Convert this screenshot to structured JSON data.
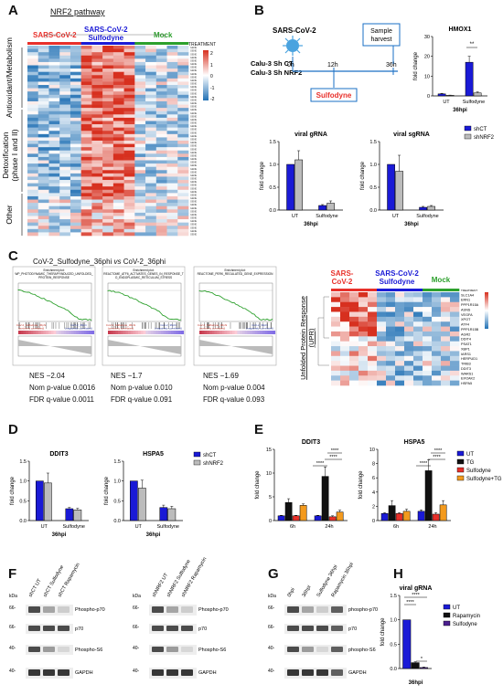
{
  "panels": {
    "A": "A",
    "B": "B",
    "C": "C",
    "D": "D",
    "E": "E",
    "F": "F",
    "G": "G",
    "H": "H"
  },
  "colors": {
    "red": "#e8302a",
    "blue": "#1a1ad6",
    "green": "#2ca02c",
    "gray": "#bcbcbc",
    "black": "#111111",
    "orange": "#f39a1e",
    "purple": "#4b1f8f"
  },
  "panelA": {
    "title": "NRF2 pathway",
    "groups": [
      "SARS-CoV-2",
      "SARS-CoV-2\nSulfodyne",
      "Mock"
    ],
    "treatment_label": "TREATMENT",
    "row_groups": [
      "Antioxidant/Metabolism",
      "Detoxification\n(phase I and II)",
      "Other"
    ],
    "scale": [
      "2",
      "1",
      "0",
      "-1",
      "-2"
    ]
  },
  "panelB": {
    "virus": "SARS-CoV-2",
    "cells": [
      "Calu-3 Sh CT",
      "Calu-3 Sh NRF2"
    ],
    "times": [
      "0h",
      "12h",
      "36h"
    ],
    "sample_harvest": "Sample\nharvest",
    "sulfodyne": "Sulfodyne",
    "hmox1": {
      "title": "HMOX1",
      "ylabel": "fold change",
      "yticks": [
        "0",
        "10",
        "20",
        "30"
      ],
      "categories": [
        "UT",
        "Sulfodyne"
      ],
      "xlabel": "36hpi",
      "sig": "**"
    },
    "gRNA": {
      "title": "viral gRNA",
      "ylabel": "fold change",
      "yticks": [
        "0.0",
        "0.5",
        "1.0",
        "1.5"
      ],
      "categories": [
        "UT",
        "Sulfodyne"
      ],
      "xlabel": "36hpi"
    },
    "sgRNA": {
      "title": "viral sgRNA",
      "ylabel": "fold change",
      "yticks": [
        "0.0",
        "0.5",
        "1.0",
        "1.5"
      ],
      "categories": [
        "UT",
        "Sulfodyne"
      ],
      "xlabel": "36hpi"
    },
    "legend": [
      "shCT",
      "shNRF2"
    ]
  },
  "panelC": {
    "title_pre": "CoV-2_Sulfodyne_36phi ",
    "title_vs": "vs",
    "title_post": " CoV-2_36phi",
    "gsea": [
      {
        "name": "Enrichment plot:\nWP_PHOTODYNAMIC_THERAPYINDUCED_UNFOLDED_\nPROTEIN_RESPONSE",
        "nes": "NES −2.04",
        "nom": "Nom p-value 0.0016",
        "fdr": "FDR q-value 0.0011"
      },
      {
        "name": "Enrichment plot:\nREACTOME_ATF6_ACTIVATES_GENES_IN_RESPONSE_T\nO_ENDOPLASMIC_RETICULUM_STRESS",
        "nes": "NES −1.7",
        "nom": "Nom p-value 0.010",
        "fdr": "FDR q-value 0.091"
      },
      {
        "name": "Enrichment plot:\nREACTOME_PERK_REGULATED_GENE_EXPRESSION",
        "nes": "NES −1.69",
        "nom": "Nom p-value 0.004",
        "fdr": "FDR q-value 0.093"
      }
    ],
    "pos_label": "CoV-2_Sulfodyne_36phi\n(positively correlated)",
    "neg_label": "CoV-2_36phi\n(negatively correlated)",
    "upr_groups": [
      "SARS-\nCoV-2",
      "SARS-CoV-2\nSulfodyne",
      "Mock"
    ],
    "upr_side": "Unfolded Protein Response\n(UPR)",
    "treatment_label": "TREATMENT",
    "genes": [
      "SLC1A4",
      "ERN1",
      "PPP1R15A",
      "ASNS",
      "VEGFA",
      "XPOT",
      "ATF4",
      "PPP1R15B",
      "AGR2",
      "DDIT4",
      "PSAT1",
      "XBP1",
      "IARS1",
      "HERPUD1",
      "TRIB3",
      "DDIT3",
      "WARS1",
      "EIF2AK2",
      "HSPA5"
    ]
  },
  "panelD": {
    "ddit3": {
      "title": "DDIT3",
      "ylabel": "fold change",
      "yticks": [
        "0.0",
        "0.5",
        "1.0",
        "1.5"
      ],
      "categories": [
        "UT",
        "Sulfodyne"
      ],
      "xlabel": "36hpi"
    },
    "hspa5": {
      "title": "HSPA5",
      "ylabel": "fold change",
      "yticks": [
        "0.0",
        "0.5",
        "1.0",
        "1.5"
      ],
      "categories": [
        "UT",
        "Sulfodyne"
      ],
      "xlabel": "36hpi"
    },
    "legend": [
      "shCT",
      "shNRF2"
    ]
  },
  "panelE": {
    "ddit3": {
      "title": "DDIT3",
      "ylabel": "fold change",
      "yticks": [
        "0",
        "5",
        "10",
        "15"
      ],
      "categories": [
        "6h",
        "24h"
      ],
      "sig": [
        "****",
        "****",
        "****"
      ]
    },
    "hspa5": {
      "title": "HSPA5",
      "ylabel": "fold change",
      "yticks": [
        "0",
        "2",
        "4",
        "6",
        "8",
        "10"
      ],
      "categories": [
        "6h",
        "24h"
      ],
      "sig": [
        "****",
        "****",
        "****"
      ]
    },
    "legend": [
      "UT",
      "TG",
      "Sulfodyne",
      "Sulfodyne+TG"
    ]
  },
  "panelF": {
    "kda": [
      "kDa",
      "66-",
      "66-",
      "40-",
      "40-"
    ],
    "lanes1": [
      "shCT UT",
      "shCT Sulfodyne",
      "shCT Rapamycin"
    ],
    "lanes2": [
      "shNRF2 UT",
      "shNRF2 Sulfodyne",
      "shNRF2 Rapamycin"
    ],
    "bands": [
      "Phospho-p70",
      "p70",
      "Phospho-S6",
      "GAPDH"
    ]
  },
  "panelG": {
    "kda": [
      "kDa",
      "66-",
      "66-",
      "40-",
      "40-"
    ],
    "lanes": [
      "0hpi",
      "36hpi",
      "Sulfodyne 36hpi",
      "Rapamycin 36hpi"
    ],
    "bands": [
      "phospho-p70",
      "p70",
      "phospho-S6",
      "GAPDH"
    ]
  },
  "panelH": {
    "title": "viral gRNA",
    "ylabel": "fold change",
    "yticks": [
      "0.0",
      "0.5",
      "1.0",
      "1.5"
    ],
    "xlabel": "36hpi",
    "legend": [
      "UT",
      "Rapamycin",
      "Sulfodyne"
    ],
    "sig": [
      "****",
      "****",
      "*"
    ]
  },
  "chart_data": [
    {
      "type": "bar",
      "title": "HMOX1",
      "ylabel": "fold change",
      "ylim": [
        0,
        30
      ],
      "categories": [
        "UT",
        "Sulfodyne"
      ],
      "series": [
        {
          "name": "shCT",
          "values": [
            1,
            17
          ]
        },
        {
          "name": "shNRF2",
          "values": [
            0.3,
            1.5
          ]
        }
      ]
    },
    {
      "type": "bar",
      "title": "viral gRNA",
      "ylabel": "fold change",
      "ylim": [
        0,
        1.5
      ],
      "categories": [
        "UT",
        "Sulfodyne"
      ],
      "series": [
        {
          "name": "shCT",
          "values": [
            1.0,
            0.1
          ]
        },
        {
          "name": "shNRF2",
          "values": [
            1.1,
            0.15
          ]
        }
      ]
    },
    {
      "type": "bar",
      "title": "viral sgRNA",
      "ylabel": "fold change",
      "ylim": [
        0,
        1.5
      ],
      "categories": [
        "UT",
        "Sulfodyne"
      ],
      "series": [
        {
          "name": "shCT",
          "values": [
            1.0,
            0.06
          ]
        },
        {
          "name": "shNRF2",
          "values": [
            0.85,
            0.08
          ]
        }
      ]
    },
    {
      "type": "bar",
      "title": "DDIT3",
      "ylabel": "fold change",
      "ylim": [
        0,
        1.5
      ],
      "categories": [
        "UT",
        "Sulfodyne"
      ],
      "series": [
        {
          "name": "shCT",
          "values": [
            1.0,
            0.3
          ]
        },
        {
          "name": "shNRF2",
          "values": [
            0.95,
            0.27
          ]
        }
      ]
    },
    {
      "type": "bar",
      "title": "HSPA5",
      "ylabel": "fold change",
      "ylim": [
        0,
        1.5
      ],
      "categories": [
        "UT",
        "Sulfodyne"
      ],
      "series": [
        {
          "name": "shCT",
          "values": [
            1.0,
            0.33
          ]
        },
        {
          "name": "shNRF2",
          "values": [
            0.82,
            0.3
          ]
        }
      ]
    },
    {
      "type": "bar",
      "title": "DDIT3",
      "ylabel": "fold change",
      "ylim": [
        0,
        15
      ],
      "categories": [
        "6h",
        "24h"
      ],
      "series": [
        {
          "name": "UT",
          "values": [
            1,
            1
          ]
        },
        {
          "name": "TG",
          "values": [
            3.8,
            9.3
          ]
        },
        {
          "name": "Sulfodyne",
          "values": [
            1,
            0.8
          ]
        },
        {
          "name": "Sulfodyne+TG",
          "values": [
            3.2,
            1.8
          ]
        }
      ]
    },
    {
      "type": "bar",
      "title": "HSPA5",
      "ylabel": "fold change",
      "ylim": [
        0,
        10
      ],
      "categories": [
        "6h",
        "24h"
      ],
      "series": [
        {
          "name": "UT",
          "values": [
            1,
            1.3
          ]
        },
        {
          "name": "TG",
          "values": [
            2.1,
            7
          ]
        },
        {
          "name": "Sulfodyne",
          "values": [
            1,
            0.9
          ]
        },
        {
          "name": "Sulfodyne+TG",
          "values": [
            1.3,
            2.2
          ]
        }
      ]
    },
    {
      "type": "bar",
      "title": "viral gRNA",
      "ylabel": "fold change",
      "ylim": [
        0,
        1.5
      ],
      "categories": [
        "36hpi"
      ],
      "series": [
        {
          "name": "UT",
          "values": [
            1.0
          ]
        },
        {
          "name": "Rapamycin",
          "values": [
            0.12
          ]
        },
        {
          "name": "Sulfodyne",
          "values": [
            0.02
          ]
        }
      ]
    }
  ]
}
